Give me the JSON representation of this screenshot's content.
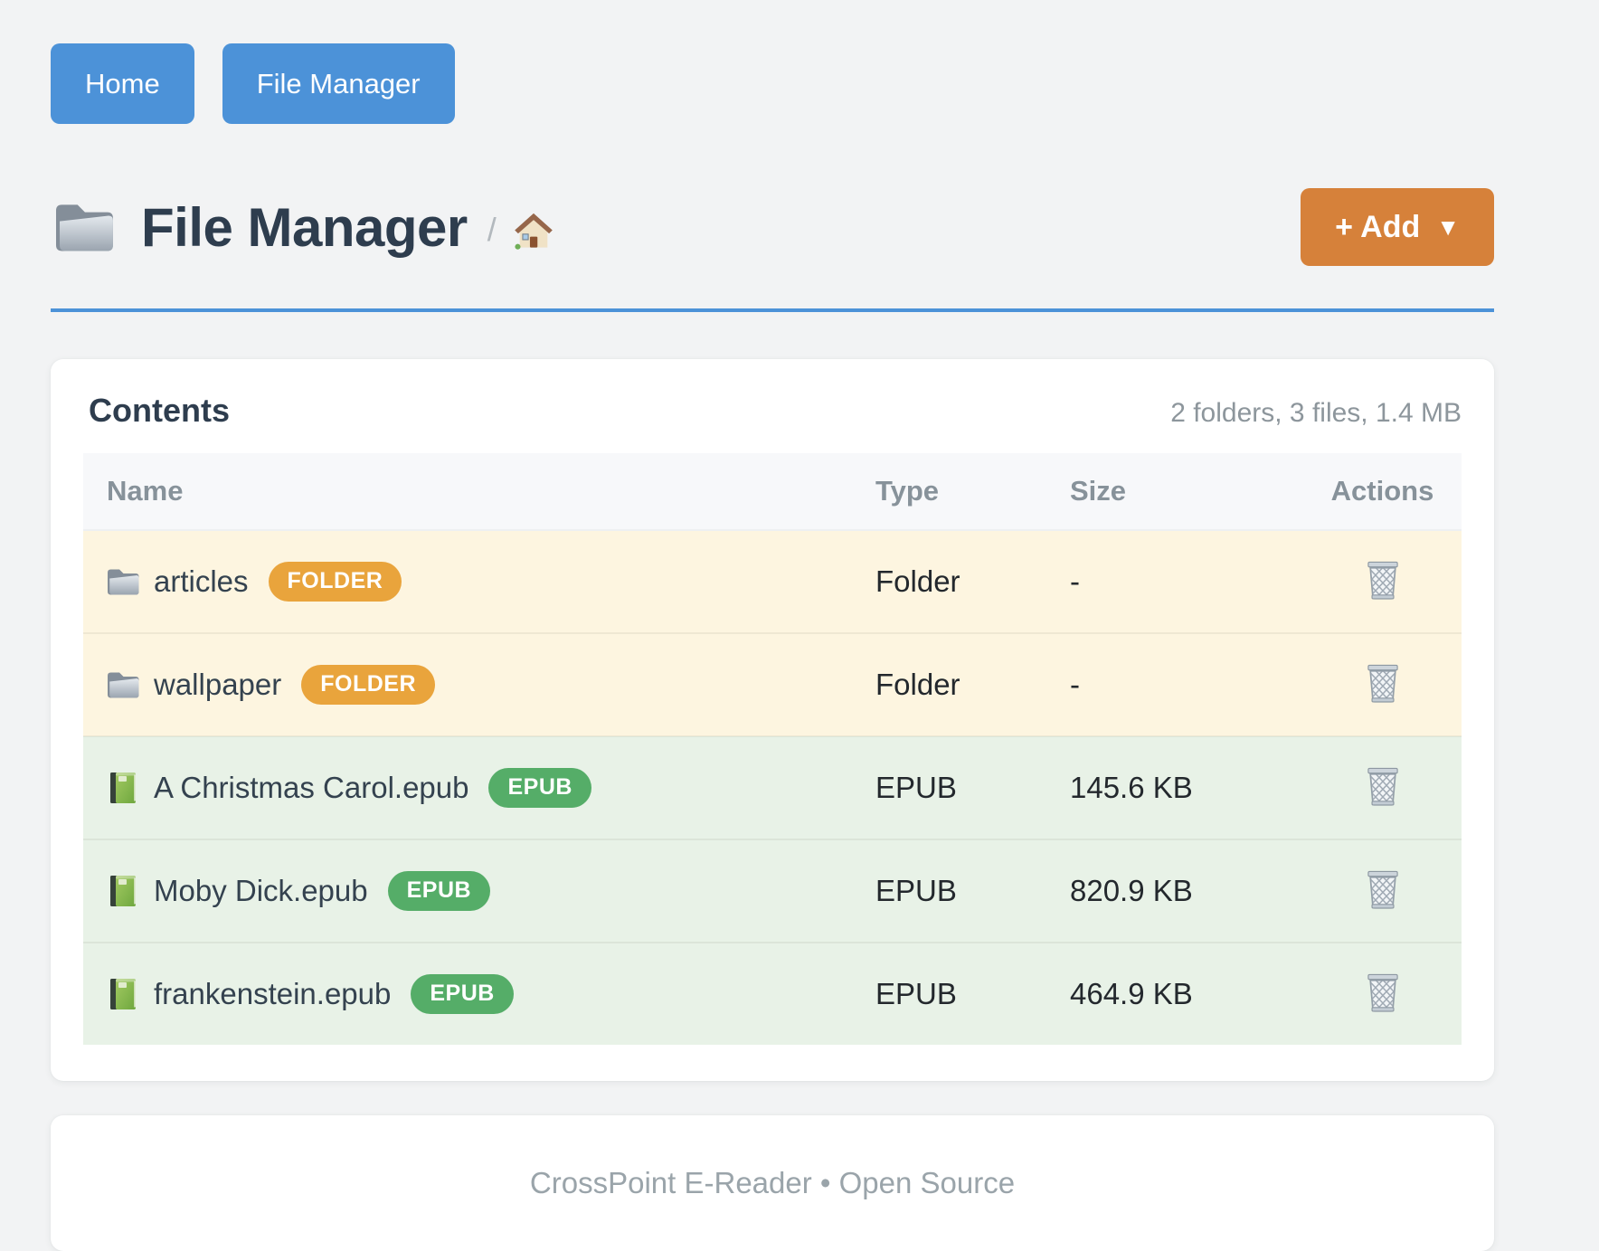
{
  "nav": {
    "buttons": [
      {
        "label": "Home"
      },
      {
        "label": "File Manager"
      }
    ]
  },
  "header": {
    "title": "File Manager",
    "title_icon": "folder-icon",
    "breadcrumb_separator": "/",
    "breadcrumb_home_icon": "house-icon",
    "add_button": {
      "label": "+ Add",
      "caret": "▼"
    }
  },
  "content_card": {
    "title": "Contents",
    "summary": "2 folders, 3 files, 1.4 MB",
    "table": {
      "columns": [
        "Name",
        "Type",
        "Size",
        "Actions"
      ],
      "rows": [
        {
          "name": "articles",
          "icon": "folder-icon",
          "badge": "FOLDER",
          "badge_style": "folder",
          "row_type": "folder",
          "type": "Folder",
          "size": "-",
          "action_icon": "trash-icon"
        },
        {
          "name": "wallpaper",
          "icon": "folder-icon",
          "badge": "FOLDER",
          "badge_style": "folder",
          "row_type": "folder",
          "type": "Folder",
          "size": "-",
          "action_icon": "trash-icon"
        },
        {
          "name": "A Christmas Carol.epub",
          "icon": "book-icon",
          "badge": "EPUB",
          "badge_style": "epub",
          "row_type": "epub",
          "type": "EPUB",
          "size": "145.6 KB",
          "action_icon": "trash-icon"
        },
        {
          "name": "Moby Dick.epub",
          "icon": "book-icon",
          "badge": "EPUB",
          "badge_style": "epub",
          "row_type": "epub",
          "type": "EPUB",
          "size": "820.9 KB",
          "action_icon": "trash-icon"
        },
        {
          "name": "frankenstein.epub",
          "icon": "book-icon",
          "badge": "EPUB",
          "badge_style": "epub",
          "row_type": "epub",
          "type": "EPUB",
          "size": "464.9 KB",
          "action_icon": "trash-icon"
        }
      ]
    }
  },
  "footer": {
    "text": "CrossPoint E-Reader • Open Source"
  },
  "colors": {
    "primary_blue": "#4c92d8",
    "accent_orange": "#d6813a",
    "folder_badge": "#e9a43c",
    "epub_badge": "#55ad68",
    "folder_row_bg": "#fdf5e0",
    "epub_row_bg": "#e8f2e7",
    "page_bg": "#f2f3f4",
    "heading_text": "#2e3d4e",
    "muted_text": "#8d969c"
  }
}
